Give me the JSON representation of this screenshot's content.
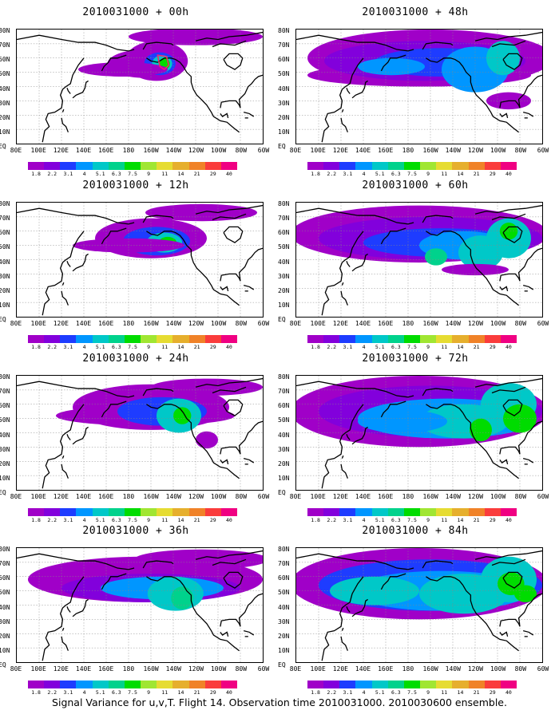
{
  "panels": [
    {
      "title": "2010031000 + 00h",
      "lead_hours": 0
    },
    {
      "title": "2010031000 + 48h",
      "lead_hours": 48
    },
    {
      "title": "2010031000 + 12h",
      "lead_hours": 12
    },
    {
      "title": "2010031000 + 60h",
      "lead_hours": 60
    },
    {
      "title": "2010031000 + 24h",
      "lead_hours": 24
    },
    {
      "title": "2010031000 + 72h",
      "lead_hours": 72
    },
    {
      "title": "2010031000 + 36h",
      "lead_hours": 36
    },
    {
      "title": "2010031000 + 84h",
      "lead_hours": 84
    }
  ],
  "axes": {
    "longitude_labels": [
      "80E",
      "100E",
      "120E",
      "140E",
      "160E",
      "180",
      "160W",
      "140W",
      "120W",
      "100W",
      "80W",
      "60W"
    ],
    "latitude_labels": [
      "80N",
      "70N",
      "60N",
      "50N",
      "40N",
      "30N",
      "20N",
      "10N",
      "EQ"
    ]
  },
  "colorbar": {
    "labels": [
      "1.8",
      "2.2",
      "3.1",
      "4",
      "5.1",
      "6.3",
      "7.5",
      "9",
      "11",
      "14",
      "21",
      "29",
      "40"
    ],
    "colors": [
      "#a000c8",
      "#8200dc",
      "#1e3cff",
      "#0096ff",
      "#00c8c8",
      "#00d28c",
      "#00dc00",
      "#a0e632",
      "#e6dc32",
      "#e6af2d",
      "#f08228",
      "#fa3c3c",
      "#f00082"
    ]
  },
  "footer": "Signal Variance for u,v,T. Flight 14. Observation time 2010031000. 2010030600 ensemble."
}
